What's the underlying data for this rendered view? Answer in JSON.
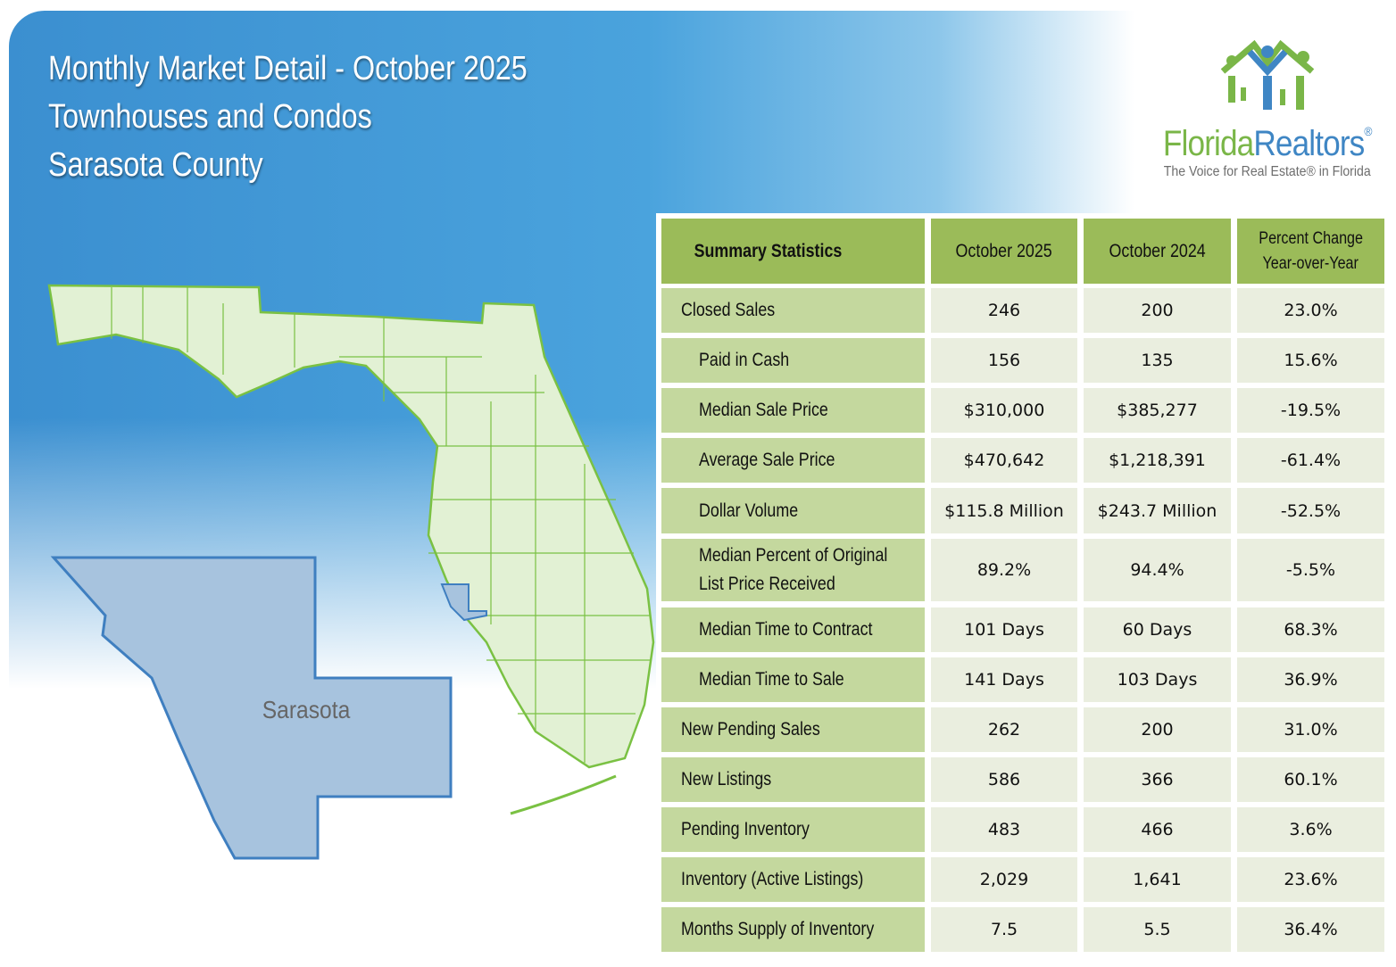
{
  "header": {
    "line1": "Monthly Market Detail - October 2025",
    "line2": "Townhouses and Condos",
    "line3": "Sarasota County"
  },
  "logo": {
    "name_part1": "Florida",
    "name_part2": "Realtors",
    "registered": "®",
    "tagline": "The Voice for Real Estate® in Florida",
    "colors": {
      "green": "#7ab648",
      "blue": "#3f86c4"
    }
  },
  "map": {
    "county_label": "Sarasota",
    "highlight_color": "#a7c3de",
    "state_fill": "#e2f1d4",
    "state_stroke": "#7ac143"
  },
  "table": {
    "headers": [
      "Summary Statistics",
      "October 2025",
      "October 2024",
      "Percent Change\nYear-over-Year"
    ],
    "header_pc_line1": "Percent Change",
    "header_pc_line2": "Year-over-Year",
    "rows": [
      {
        "label": "Closed Sales",
        "indent": false,
        "values": [
          "246",
          "200",
          "23.0%"
        ]
      },
      {
        "label": "Paid in Cash",
        "indent": true,
        "values": [
          "156",
          "135",
          "15.6%"
        ]
      },
      {
        "label": "Median Sale Price",
        "indent": true,
        "values": [
          "$310,000",
          "$385,277",
          "-19.5%"
        ]
      },
      {
        "label": "Average Sale Price",
        "indent": true,
        "values": [
          "$470,642",
          "$1,218,391",
          "-61.4%"
        ]
      },
      {
        "label": "Dollar Volume",
        "indent": true,
        "values": [
          "$115.8 Million",
          "$243.7 Million",
          "-52.5%"
        ]
      },
      {
        "label": "Median Percent of Original",
        "label2": "List Price Received",
        "indent": true,
        "values": [
          "89.2%",
          "94.4%",
          "-5.5%"
        ]
      },
      {
        "label": "Median Time to Contract",
        "indent": true,
        "values": [
          "101 Days",
          "60 Days",
          "68.3%"
        ]
      },
      {
        "label": "Median Time to Sale",
        "indent": true,
        "values": [
          "141 Days",
          "103 Days",
          "36.9%"
        ]
      },
      {
        "label": "New Pending Sales",
        "indent": false,
        "values": [
          "262",
          "200",
          "31.0%"
        ]
      },
      {
        "label": "New Listings",
        "indent": false,
        "values": [
          "586",
          "366",
          "60.1%"
        ]
      },
      {
        "label": "Pending Inventory",
        "indent": false,
        "values": [
          "483",
          "466",
          "3.6%"
        ]
      },
      {
        "label": "Inventory (Active Listings)",
        "indent": false,
        "values": [
          "2,029",
          "1,641",
          "23.6%"
        ]
      },
      {
        "label": "Months Supply of Inventory",
        "indent": false,
        "values": [
          "7.5",
          "5.5",
          "36.4%"
        ]
      }
    ]
  }
}
